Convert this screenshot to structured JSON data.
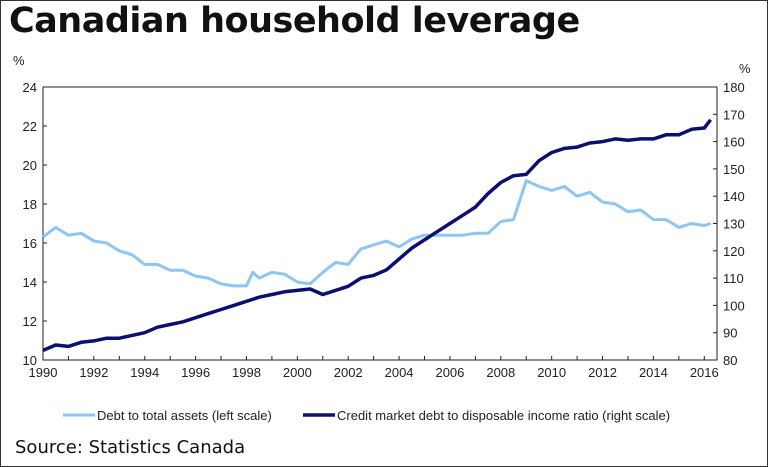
{
  "title": "Canadian household leverage",
  "source": "Source: Statistics Canada",
  "chart_data": {
    "type": "line",
    "ylabel_left": "%",
    "ylabel_right": "%",
    "xlim": [
      1990,
      2016.5
    ],
    "ylim_left": [
      10,
      24
    ],
    "ylim_right": [
      80,
      180
    ],
    "xticks": [
      1990,
      1992,
      1994,
      1996,
      1998,
      2000,
      2002,
      2004,
      2006,
      2008,
      2010,
      2012,
      2014,
      2016
    ],
    "yticks_left": [
      10,
      12,
      14,
      16,
      18,
      20,
      22,
      24
    ],
    "yticks_right": [
      80,
      90,
      100,
      110,
      120,
      130,
      140,
      150,
      160,
      170,
      180
    ],
    "grid": false,
    "legend": "bottom",
    "series": [
      {
        "name": "Debt to total assets (left scale)",
        "axis": "left",
        "color": "#8ec5f2",
        "x": [
          1990,
          1990.5,
          1991,
          1991.5,
          1992,
          1992.5,
          1993,
          1993.5,
          1994,
          1994.5,
          1995,
          1995.5,
          1996,
          1996.5,
          1997,
          1997.5,
          1998,
          1998.25,
          1998.5,
          1999,
          1999.5,
          2000,
          2000.5,
          2001,
          2001.5,
          2002,
          2002.5,
          2003,
          2003.5,
          2004,
          2004.5,
          2005,
          2005.5,
          2006,
          2006.5,
          2007,
          2007.5,
          2008,
          2008.5,
          2009,
          2009.5,
          2010,
          2010.5,
          2011,
          2011.5,
          2012,
          2012.5,
          2013,
          2013.5,
          2014,
          2014.5,
          2015,
          2015.5,
          2016,
          2016.25
        ],
        "y": [
          16.3,
          16.8,
          16.4,
          16.5,
          16.1,
          16.0,
          15.6,
          15.4,
          14.9,
          14.9,
          14.6,
          14.6,
          14.3,
          14.2,
          13.9,
          13.8,
          13.8,
          14.5,
          14.2,
          14.5,
          14.4,
          14.0,
          13.9,
          14.5,
          15.0,
          14.9,
          15.7,
          15.9,
          16.1,
          15.8,
          16.2,
          16.4,
          16.4,
          16.4,
          16.4,
          16.5,
          16.5,
          17.1,
          17.2,
          19.2,
          18.9,
          18.7,
          18.9,
          18.4,
          18.6,
          18.1,
          18.0,
          17.6,
          17.7,
          17.2,
          17.2,
          16.8,
          17.0,
          16.9,
          17.0
        ]
      },
      {
        "name": "Credit market debt to disposable income ratio (right scale)",
        "axis": "right",
        "color": "#0c0f6e",
        "x": [
          1990,
          1990.5,
          1991,
          1991.5,
          1992,
          1992.5,
          1993,
          1993.5,
          1994,
          1994.5,
          1995,
          1995.5,
          1996,
          1996.5,
          1997,
          1997.5,
          1998,
          1998.5,
          1999,
          1999.5,
          2000,
          2000.5,
          2001,
          2001.5,
          2002,
          2002.5,
          2003,
          2003.5,
          2004,
          2004.5,
          2005,
          2005.5,
          2006,
          2006.5,
          2007,
          2007.5,
          2008,
          2008.5,
          2009,
          2009.5,
          2010,
          2010.5,
          2011,
          2011.5,
          2012,
          2012.5,
          2013,
          2013.5,
          2014,
          2014.5,
          2015,
          2015.5,
          2016,
          2016.25
        ],
        "y": [
          83.5,
          85.5,
          85,
          86.5,
          87,
          88,
          88,
          89,
          90,
          92,
          93,
          94,
          95.5,
          97,
          98.5,
          100,
          101.5,
          103,
          104,
          105,
          105.5,
          106,
          104,
          105.5,
          107,
          110,
          111,
          113,
          117,
          121,
          124,
          127,
          130,
          133,
          136,
          141,
          145,
          147.5,
          148,
          153,
          156,
          157.5,
          158,
          159.5,
          160,
          161,
          160.5,
          161,
          161,
          162.5,
          162.5,
          164.5,
          165,
          168
        ]
      }
    ]
  }
}
